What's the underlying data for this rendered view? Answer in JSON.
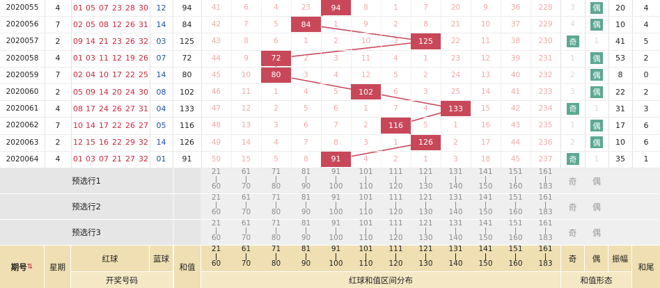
{
  "rows": [
    {
      "issue": "2020055",
      "week": "4",
      "reds": [
        "01",
        "05",
        "07",
        "23",
        "28",
        "30"
      ],
      "blue": "12",
      "sum": "94",
      "dist": [
        "41",
        "6",
        "4",
        "23",
        "94",
        "8",
        "1",
        "7",
        "20",
        "9",
        "36",
        "228"
      ],
      "hit": 4,
      "ji": "3",
      "ou": "偶",
      "oddeven": "ou",
      "amp": "20",
      "tail": "4"
    },
    {
      "issue": "2020056",
      "week": "7",
      "reds": [
        "02",
        "05",
        "08",
        "12",
        "26",
        "31"
      ],
      "blue": "14",
      "sum": "84",
      "dist": [
        "42",
        "7",
        "5",
        "84",
        "1",
        "9",
        "2",
        "8",
        "21",
        "10",
        "37",
        "229"
      ],
      "hit": 3,
      "ji": "4",
      "ou": "偶",
      "oddeven": "ou",
      "amp": "10",
      "tail": "4"
    },
    {
      "issue": "2020057",
      "week": "2",
      "reds": [
        "09",
        "14",
        "21",
        "23",
        "26",
        "32"
      ],
      "blue": "03",
      "sum": "125",
      "dist": [
        "43",
        "8",
        "6",
        "1",
        "2",
        "10",
        "3",
        "125",
        "22",
        "11",
        "38",
        "230"
      ],
      "hit": 7,
      "ji": "奇",
      "ou": "1",
      "oddeven": "ji",
      "amp": "41",
      "tail": "5"
    },
    {
      "issue": "2020058",
      "week": "4",
      "reds": [
        "01",
        "03",
        "11",
        "12",
        "19",
        "26"
      ],
      "blue": "07",
      "sum": "72",
      "dist": [
        "44",
        "9",
        "72",
        "2",
        "3",
        "11",
        "4",
        "1",
        "23",
        "12",
        "39",
        "231"
      ],
      "hit": 2,
      "ji": "1",
      "ou": "偶",
      "oddeven": "ou",
      "amp": "53",
      "tail": "2"
    },
    {
      "issue": "2020059",
      "week": "7",
      "reds": [
        "02",
        "04",
        "10",
        "17",
        "22",
        "25"
      ],
      "blue": "14",
      "sum": "80",
      "dist": [
        "45",
        "10",
        "80",
        "3",
        "4",
        "12",
        "5",
        "2",
        "24",
        "13",
        "40",
        "232"
      ],
      "hit": 2,
      "ji": "2",
      "ou": "偶",
      "oddeven": "ou",
      "amp": "8",
      "tail": "0"
    },
    {
      "issue": "2020060",
      "week": "2",
      "reds": [
        "05",
        "09",
        "14",
        "20",
        "24",
        "30"
      ],
      "blue": "08",
      "sum": "102",
      "dist": [
        "46",
        "11",
        "1",
        "4",
        "5",
        "102",
        "6",
        "3",
        "25",
        "14",
        "41",
        "233"
      ],
      "hit": 5,
      "ji": "3",
      "ou": "偶",
      "oddeven": "ou",
      "amp": "22",
      "tail": "2"
    },
    {
      "issue": "2020061",
      "week": "4",
      "reds": [
        "08",
        "17",
        "24",
        "26",
        "27",
        "31"
      ],
      "blue": "04",
      "sum": "133",
      "dist": [
        "47",
        "12",
        "2",
        "5",
        "6",
        "1",
        "7",
        "4",
        "133",
        "15",
        "42",
        "234"
      ],
      "hit": 8,
      "ji": "奇",
      "ou": "1",
      "oddeven": "ji",
      "amp": "31",
      "tail": "3"
    },
    {
      "issue": "2020062",
      "week": "7",
      "reds": [
        "10",
        "14",
        "17",
        "22",
        "26",
        "27"
      ],
      "blue": "05",
      "sum": "116",
      "dist": [
        "48",
        "13",
        "3",
        "6",
        "7",
        "2",
        "116",
        "5",
        "1",
        "16",
        "43",
        "235"
      ],
      "hit": 6,
      "ji": "1",
      "ou": "偶",
      "oddeven": "ou",
      "amp": "17",
      "tail": "6"
    },
    {
      "issue": "2020063",
      "week": "2",
      "reds": [
        "12",
        "15",
        "16",
        "22",
        "29",
        "32"
      ],
      "blue": "14",
      "sum": "126",
      "dist": [
        "49",
        "14",
        "4",
        "7",
        "8",
        "3",
        "1",
        "126",
        "2",
        "17",
        "44",
        "236"
      ],
      "hit": 7,
      "ji": "2",
      "ou": "偶",
      "oddeven": "ou",
      "amp": "10",
      "tail": "6"
    },
    {
      "issue": "2020064",
      "week": "4",
      "reds": [
        "01",
        "03",
        "07",
        "21",
        "27",
        "32"
      ],
      "blue": "01",
      "sum": "91",
      "dist": [
        "50",
        "15",
        "5",
        "8",
        "91",
        "4",
        "2",
        "1",
        "3",
        "18",
        "45",
        "237"
      ],
      "hit": 4,
      "ji": "奇",
      "ou": "1",
      "oddeven": "ji",
      "amp": "35",
      "tail": "1"
    }
  ],
  "ranges": [
    {
      "lo": "21",
      "hi": "60"
    },
    {
      "lo": "61",
      "hi": "70"
    },
    {
      "lo": "71",
      "hi": "80"
    },
    {
      "lo": "81",
      "hi": "90"
    },
    {
      "lo": "91",
      "hi": "100"
    },
    {
      "lo": "101",
      "hi": "110"
    },
    {
      "lo": "111",
      "hi": "120"
    },
    {
      "lo": "121",
      "hi": "130"
    },
    {
      "lo": "131",
      "hi": "140"
    },
    {
      "lo": "141",
      "hi": "150"
    },
    {
      "lo": "151",
      "hi": "160"
    },
    {
      "lo": "161",
      "hi": "183"
    }
  ],
  "preselect": [
    {
      "label": "预选行1",
      "ji": "奇",
      "ou": "偶"
    },
    {
      "label": "预选行2",
      "ji": "奇",
      "ou": "偶"
    },
    {
      "label": "预选行3",
      "ji": "奇",
      "ou": "偶"
    }
  ],
  "header": {
    "issue": "期号",
    "week": "星期",
    "red": "红球",
    "blue": "蓝球",
    "sum": "和值",
    "open_numbers": "开奖号码",
    "dist_title": "红球和值区间分布",
    "ji": "奇",
    "ou": "偶",
    "amp": "振幅",
    "tail": "和尾",
    "form_title": "和值形态"
  },
  "colors": {
    "accent": "#c8485a",
    "tag": "#5ca892",
    "header": "#f4e8c5",
    "red": "#c8283c",
    "blue": "#1c4fa0"
  }
}
